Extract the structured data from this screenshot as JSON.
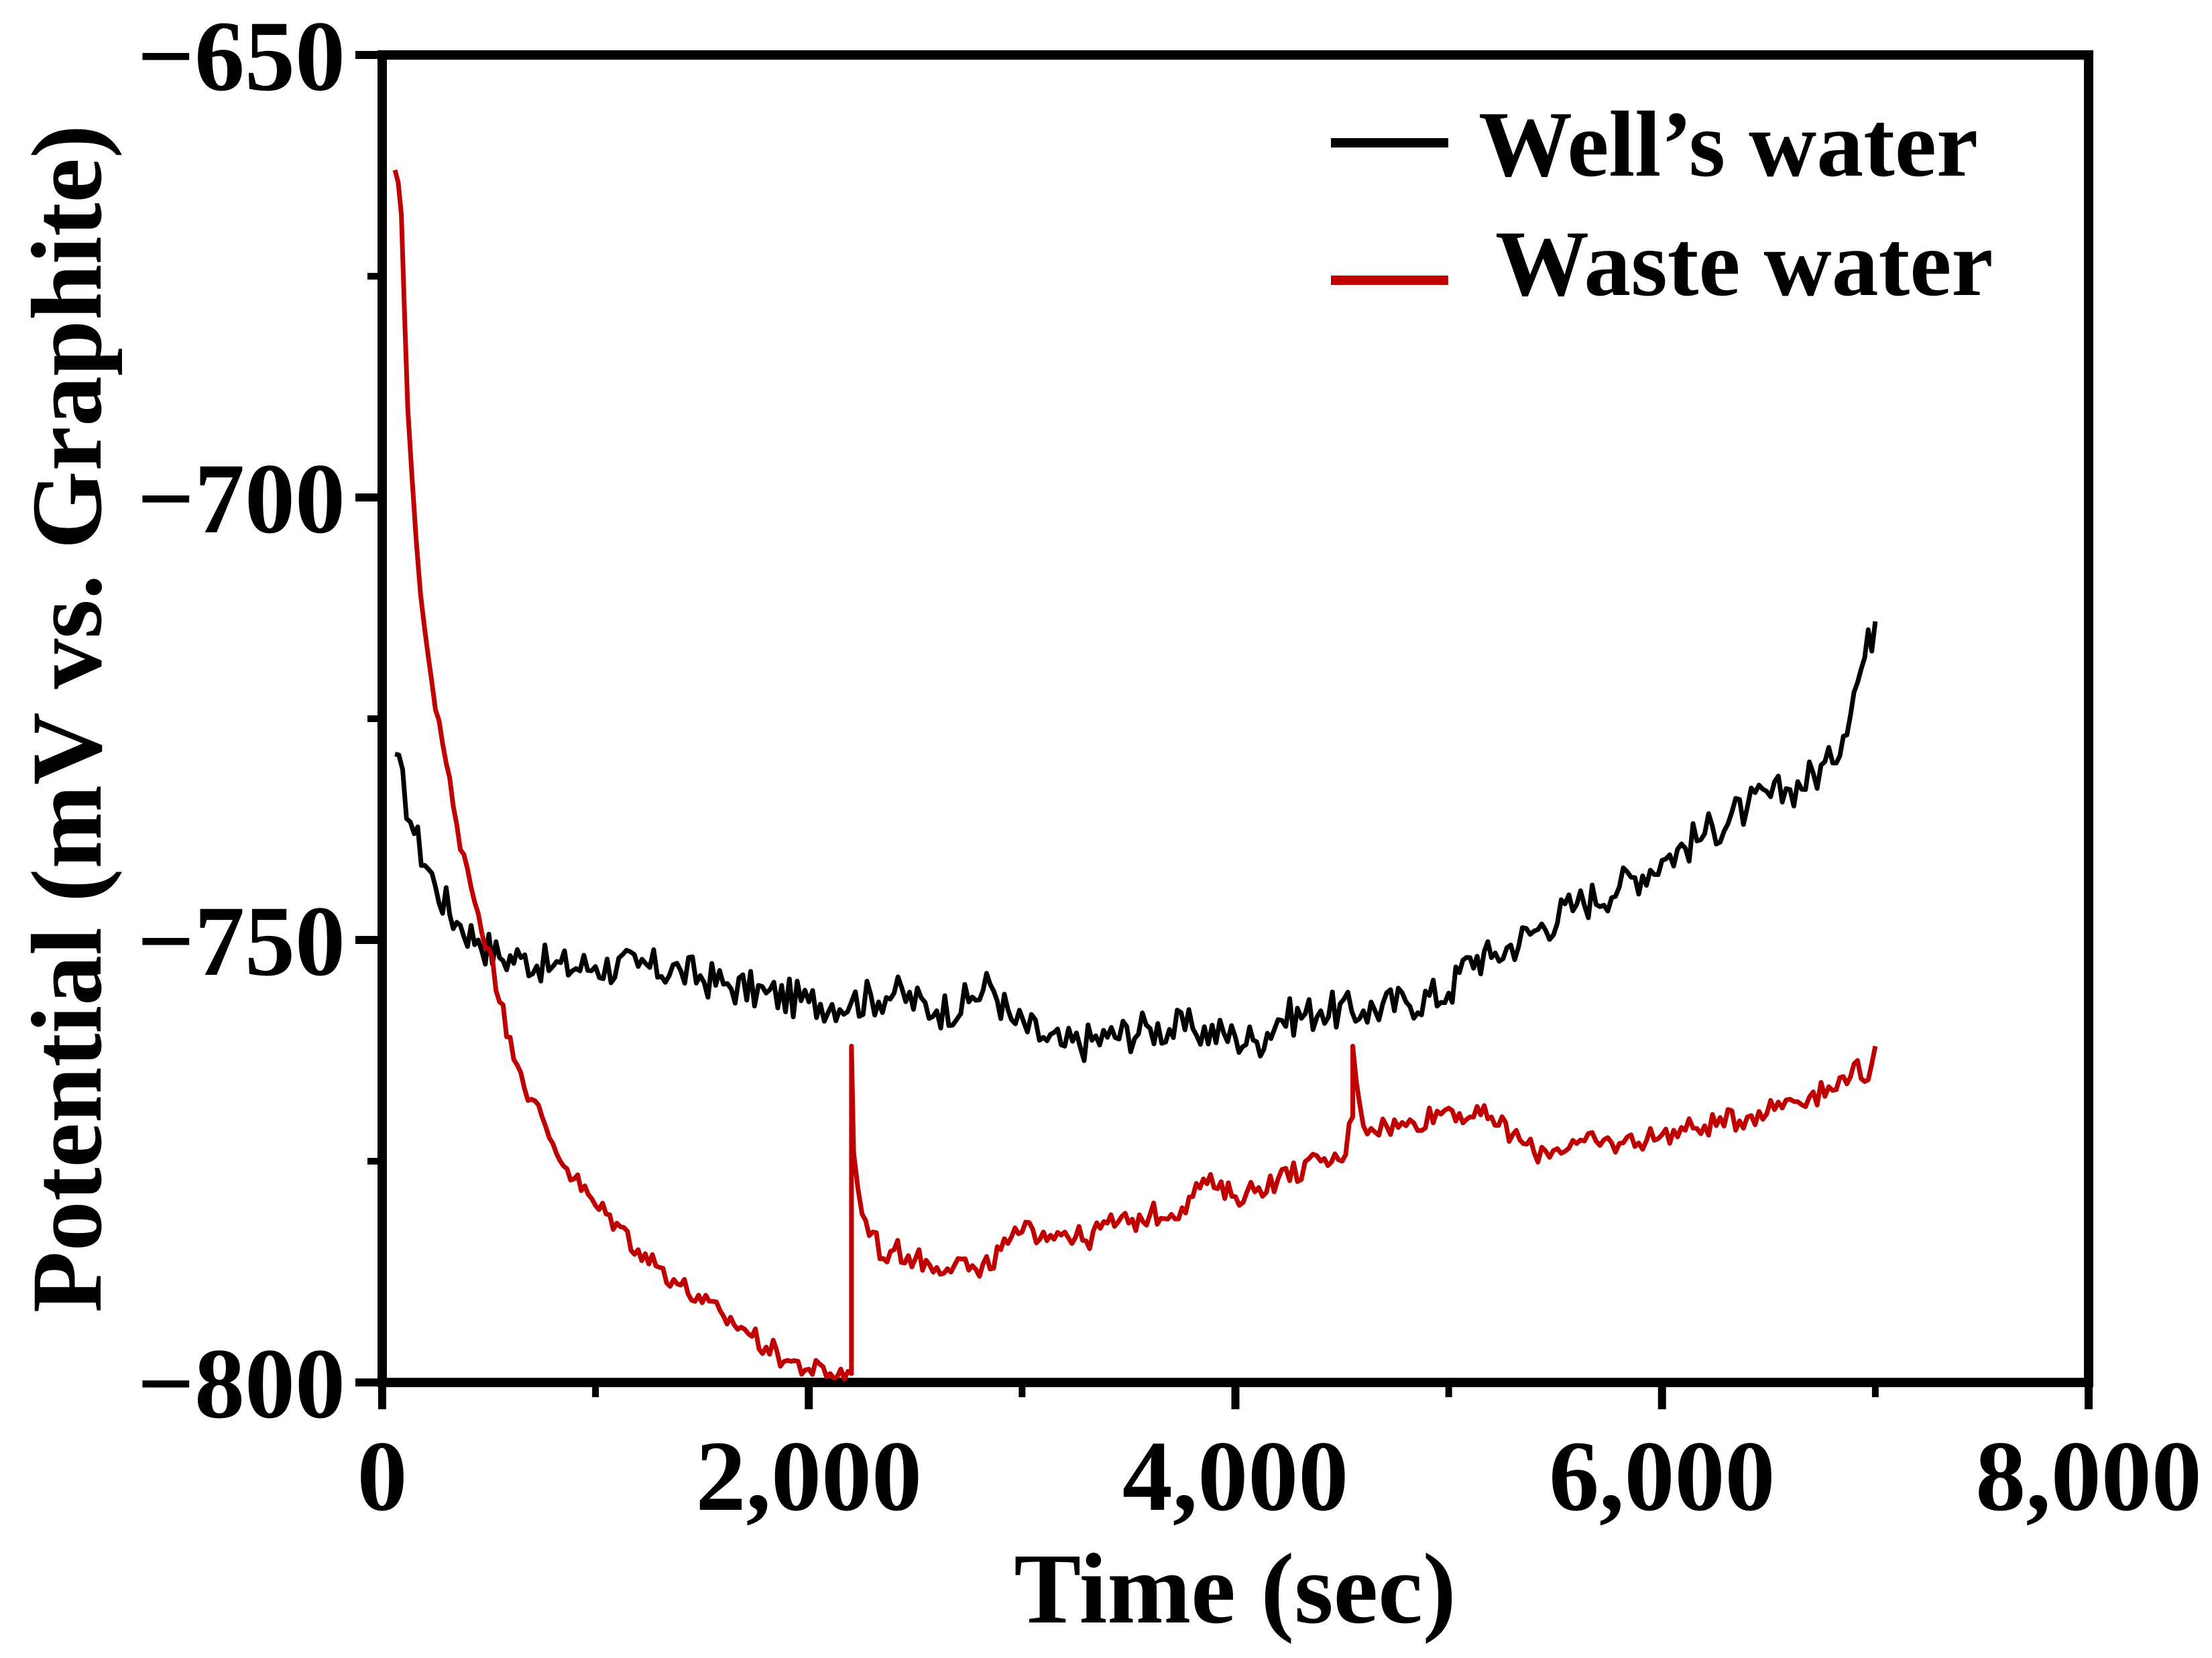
{
  "chart_data": {
    "type": "line",
    "title": "",
    "xlabel": "Time (sec)",
    "ylabel": "Potential (mV vs. Graphite)",
    "xlim": [
      0,
      8000
    ],
    "ylim": [
      -800,
      -650
    ],
    "xticks": [
      0,
      2000,
      4000,
      6000,
      8000
    ],
    "xtick_labels": [
      "0",
      "2,000",
      "4,000",
      "6,000",
      "8,000"
    ],
    "xminor": [
      1000,
      3000,
      5000,
      7000
    ],
    "yticks": [
      -800,
      -750,
      -700,
      -650
    ],
    "ytick_labels": [
      "−800",
      "−750",
      "−700",
      "−650"
    ],
    "yminor": [
      -775,
      -725,
      -675
    ],
    "grid": false,
    "legend_position": "top-right",
    "series": [
      {
        "name": "Well’s water",
        "color": "#000000",
        "x": [
          60,
          150,
          250,
          350,
          450,
          550,
          650,
          800,
          1000,
          1200,
          1400,
          1600,
          1800,
          2000,
          2200,
          2400,
          2600,
          2750,
          2850,
          2950,
          3100,
          3200,
          3400,
          3600,
          3800,
          4000,
          4100,
          4200,
          4400,
          4600,
          4800,
          5000,
          5100,
          5200,
          5400,
          5600,
          5800,
          6000,
          6200,
          6400,
          6600,
          6800,
          6900,
          7000
        ],
        "y": [
          -729,
          -738,
          -744,
          -748,
          -750,
          -752,
          -752,
          -753,
          -753,
          -753,
          -753.5,
          -755,
          -756,
          -757,
          -757,
          -756,
          -758,
          -757,
          -755,
          -759,
          -761,
          -762,
          -761,
          -760,
          -760,
          -761,
          -761.5,
          -759,
          -758,
          -758,
          -757,
          -756,
          -752,
          -752,
          -749,
          -746,
          -744,
          -741,
          -738,
          -735,
          -733,
          -730,
          -722,
          -714
        ]
      },
      {
        "name": "Waste water",
        "color": "#c00000",
        "x": [
          60,
          90,
          120,
          160,
          200,
          250,
          300,
          350,
          400,
          450,
          500,
          550,
          600,
          650,
          700,
          800,
          900,
          1000,
          1100,
          1200,
          1300,
          1400,
          1500,
          1600,
          1700,
          1800,
          1900,
          2000,
          2100,
          2200,
          2200,
          2210,
          2230,
          2250,
          2300,
          2350,
          2400,
          2500,
          2600,
          2700,
          2800,
          2900,
          3000,
          3100,
          3200,
          3300,
          3400,
          3500,
          3600,
          3700,
          3800,
          3850,
          3900,
          4000,
          4200,
          4400,
          4500,
          4550,
          4550,
          4600,
          4800,
          5000,
          5100,
          5200,
          5300,
          5400,
          5600,
          5800,
          6000,
          6200,
          6400,
          6600,
          6800,
          6900,
          6950,
          7000
        ],
        "y": [
          -663,
          -668,
          -690,
          -705,
          -715,
          -724,
          -730,
          -737,
          -742,
          -747,
          -751,
          -757,
          -761,
          -765,
          -768,
          -773,
          -777,
          -780,
          -782,
          -785,
          -787,
          -789,
          -791,
          -792.5,
          -794,
          -796,
          -797.5,
          -798.5,
          -799,
          -799,
          -762,
          -774,
          -778,
          -781,
          -783,
          -786,
          -785,
          -786,
          -787,
          -786,
          -788,
          -785,
          -783,
          -783,
          -783,
          -784,
          -782,
          -782,
          -781,
          -781,
          -779,
          -777,
          -778,
          -779,
          -777,
          -775,
          -775,
          -770,
          -762,
          -771,
          -771,
          -769,
          -770,
          -770,
          -772,
          -774,
          -773,
          -773,
          -772,
          -771,
          -770,
          -768,
          -767,
          -764,
          -766,
          -762
        ]
      }
    ]
  }
}
